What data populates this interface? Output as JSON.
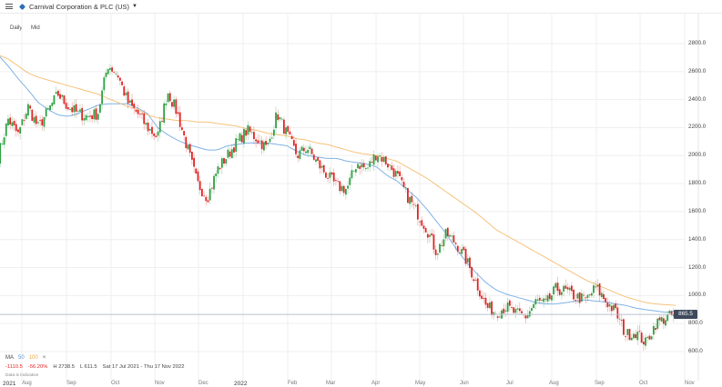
{
  "header": {
    "menu_icon": "hamburger-menu-icon",
    "instrument_icon": "tag-icon",
    "title": "Carnival Corporation & PLC (US)",
    "dropdown_icon": "caret-down-icon"
  },
  "controls": {
    "interval": "Daily",
    "price_type": "Mid"
  },
  "legend": {
    "ma_label": "MA",
    "ma_50": "50",
    "ma_100": "100",
    "remove_icon": "×",
    "colors": {
      "ma50": "#7fb2e5",
      "ma100": "#f5c27a"
    }
  },
  "stats": {
    "change": "-1110.5",
    "change_pct": "-56.20%",
    "high": "H 2738.5",
    "low": "L 611.5",
    "range": "Sat 17 Jul 2021 - Thu 17 Nov 2022"
  },
  "disclaimer": "Data is indicative",
  "last_price_tag": "865.5",
  "colors": {
    "up": "#2ea043",
    "down": "#e02424",
    "grid": "#efefef",
    "last_line": "#b9c2cf",
    "tag_bg": "#3e4a5c"
  },
  "chart_data": {
    "type": "candlestick",
    "title": "Carnival Corporation & PLC (US)",
    "interval": "Daily",
    "xlabel": "",
    "ylabel": "",
    "ylim": [
      560,
      2880
    ],
    "y_ticks": [
      600,
      800,
      1000,
      1200,
      1400,
      1600,
      1800,
      2000,
      2200,
      2400,
      2600,
      2800
    ],
    "y_tick_labels": [
      "600.0",
      "800.0",
      "1000.0",
      "1200.0",
      "1400.0",
      "1600.0",
      "1800.0",
      "2000.0",
      "2200.0",
      "2400.0",
      "2600.0",
      "2800.0"
    ],
    "x_tick_labels": [
      "2021",
      "Aug",
      "Sep",
      "Oct",
      "Nov",
      "Dec",
      "2022",
      "Feb",
      "Mar",
      "Apr",
      "May",
      "Jun",
      "Jul",
      "Aug",
      "Sep",
      "Oct",
      "Nov"
    ],
    "grid": true,
    "last_price": 865.5,
    "period_high": 2738.5,
    "period_low": 611.5,
    "change": -1110.5,
    "change_pct": -56.2,
    "date_range": "Sat 17 Jul 2021 - Thu 17 Nov 2022",
    "series_close_keypoints": {
      "x": [
        "2021-07-26",
        "2021-08-02",
        "2021-08-09",
        "2021-08-16",
        "2021-08-23",
        "2021-08-30",
        "2021-09-06",
        "2021-09-13",
        "2021-09-20",
        "2021-09-27",
        "2021-10-04",
        "2021-10-11",
        "2021-10-18",
        "2021-10-25",
        "2021-11-01",
        "2021-11-08",
        "2021-11-15",
        "2021-11-22",
        "2021-11-29",
        "2021-12-06",
        "2021-12-13",
        "2021-12-20",
        "2021-12-27",
        "2022-01-03",
        "2022-01-10",
        "2022-01-17",
        "2022-01-24",
        "2022-01-31",
        "2022-02-07",
        "2022-02-14",
        "2022-02-21",
        "2022-02-28",
        "2022-03-07",
        "2022-03-14",
        "2022-03-21",
        "2022-03-28",
        "2022-04-04",
        "2022-04-11",
        "2022-04-18",
        "2022-04-25",
        "2022-05-02",
        "2022-05-09",
        "2022-05-16",
        "2022-05-23",
        "2022-05-30",
        "2022-06-06",
        "2022-06-13",
        "2022-06-20",
        "2022-06-27",
        "2022-07-04",
        "2022-07-11",
        "2022-07-18",
        "2022-07-25",
        "2022-08-01",
        "2022-08-08",
        "2022-08-15",
        "2022-08-22",
        "2022-08-29",
        "2022-09-05",
        "2022-09-12",
        "2022-09-19",
        "2022-09-26",
        "2022-10-03",
        "2022-10-10",
        "2022-10-17",
        "2022-10-24",
        "2022-10-31",
        "2022-11-07",
        "2022-11-14"
      ],
      "close": [
        2000,
        2260,
        2150,
        2350,
        2200,
        2320,
        2440,
        2350,
        2300,
        2280,
        2300,
        2650,
        2580,
        2380,
        2300,
        2200,
        2130,
        2460,
        2300,
        2050,
        1800,
        1700,
        1900,
        2000,
        2100,
        2180,
        2120,
        2050,
        2300,
        2150,
        2000,
        2060,
        1950,
        1860,
        1780,
        1760,
        1950,
        1900,
        2020,
        1950,
        1860,
        1720,
        1600,
        1480,
        1310,
        1440,
        1370,
        1250,
        1090,
        920,
        880,
        920,
        870,
        850,
        960,
        940,
        1050,
        1030,
        990,
        970,
        1060,
        960,
        880,
        720,
        740,
        660,
        800,
        840,
        865.5
      ]
    },
    "series": [
      {
        "name": "MA 50",
        "color": "#7fb2e5",
        "values_at_keypoints": [
          2720,
          2640,
          2550,
          2470,
          2380,
          2330,
          2290,
          2280,
          2300,
          2330,
          2360,
          2370,
          2370,
          2370,
          2340,
          2300,
          2200,
          2150,
          2110,
          2080,
          2060,
          2040,
          2040,
          2070,
          2080,
          2090,
          2090,
          2090,
          2080,
          2070,
          2030,
          2000,
          1990,
          1980,
          1980,
          1960,
          1950,
          1940,
          1920,
          1860,
          1820,
          1760,
          1700,
          1620,
          1530,
          1440,
          1330,
          1240,
          1160,
          1090,
          1040,
          1010,
          990,
          970,
          950,
          940,
          940,
          950,
          960,
          970,
          960,
          955,
          940,
          930,
          910,
          900,
          890,
          880,
          890
        ]
      },
      {
        "name": "MA 100",
        "color": "#f5c27a",
        "values_at_keypoints": [
          2720,
          2690,
          2640,
          2590,
          2560,
          2540,
          2520,
          2500,
          2480,
          2460,
          2440,
          2410,
          2380,
          2350,
          2330,
          2290,
          2270,
          2260,
          2250,
          2250,
          2240,
          2240,
          2230,
          2220,
          2210,
          2190,
          2180,
          2160,
          2150,
          2140,
          2120,
          2110,
          2090,
          2080,
          2060,
          2040,
          2020,
          2010,
          2000,
          1980,
          1960,
          1920,
          1880,
          1840,
          1790,
          1740,
          1690,
          1640,
          1590,
          1530,
          1470,
          1430,
          1390,
          1350,
          1310,
          1270,
          1230,
          1190,
          1150,
          1110,
          1080,
          1050,
          1020,
          990,
          970,
          950,
          940,
          935,
          930
        ]
      }
    ]
  }
}
